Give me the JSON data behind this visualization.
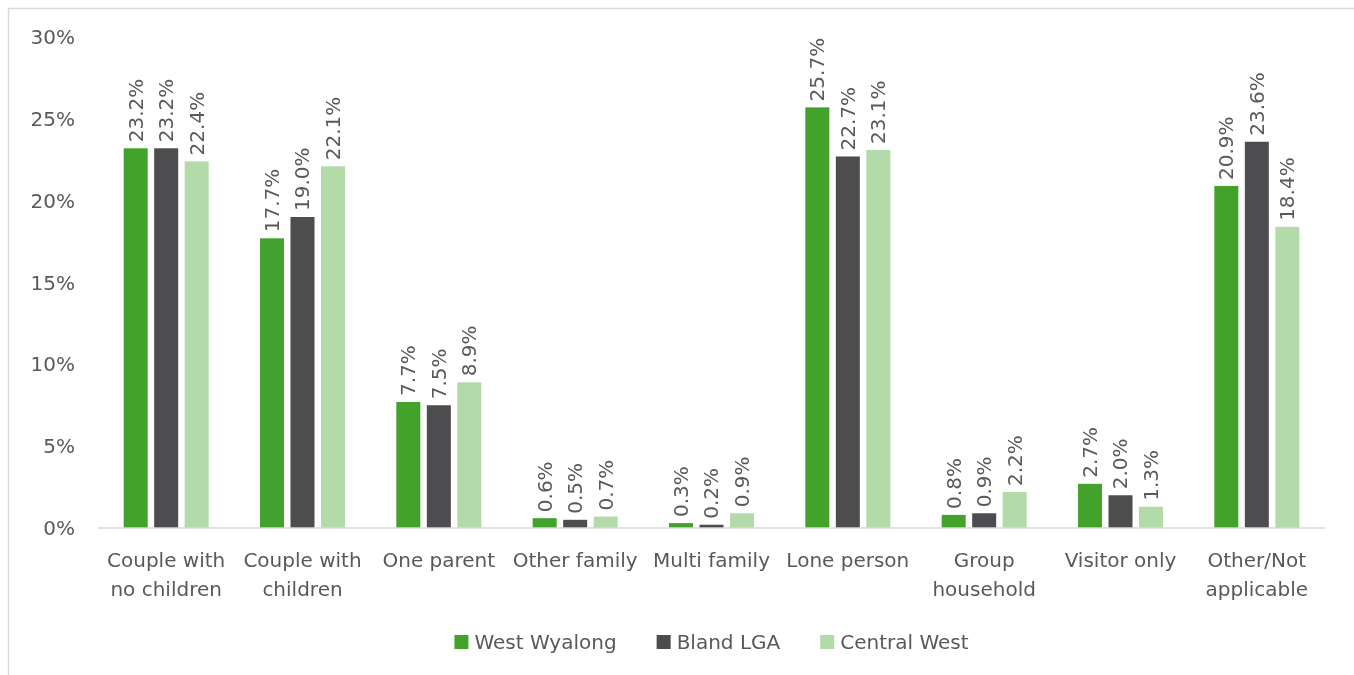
{
  "chart_data": {
    "type": "bar",
    "categories": [
      "Couple with no children",
      "Couple with children",
      "One parent",
      "Other family",
      "Multi family",
      "Lone person",
      "Group household",
      "Visitor only",
      "Other/Not applicable"
    ],
    "series": [
      {
        "name": "West Wyalong",
        "color": "#43a22c",
        "values": [
          23.2,
          17.7,
          7.7,
          0.6,
          0.3,
          25.7,
          0.8,
          2.7,
          20.9
        ],
        "value_labels": [
          "23.2%",
          "17.7%",
          "7.7%",
          "0.6%",
          "0.3%",
          "25.7%",
          "0.8%",
          "2.7%",
          "20.9%"
        ]
      },
      {
        "name": "Bland LGA",
        "color": "#4d4d4f",
        "values": [
          23.2,
          19.0,
          7.5,
          0.5,
          0.2,
          22.7,
          0.9,
          2.0,
          23.6
        ],
        "value_labels": [
          "23.2%",
          "19.0%",
          "7.5%",
          "0.5%",
          "0.2%",
          "22.7%",
          "0.9%",
          "2.0%",
          "23.6%"
        ]
      },
      {
        "name": "Central West",
        "color": "#b3dbaa",
        "values": [
          22.4,
          22.1,
          8.9,
          0.7,
          0.9,
          23.1,
          2.2,
          1.3,
          18.4
        ],
        "value_labels": [
          "22.4%",
          "22.1%",
          "8.9%",
          "0.7%",
          "0.9%",
          "23.1%",
          "2.2%",
          "1.3%",
          "18.4%"
        ]
      }
    ],
    "ylim": [
      0,
      30
    ],
    "yticks": [
      {
        "value": 0,
        "label": "0%"
      },
      {
        "value": 5,
        "label": "5%"
      },
      {
        "value": 10,
        "label": "10%"
      },
      {
        "value": 15,
        "label": "15%"
      },
      {
        "value": 20,
        "label": "20%"
      },
      {
        "value": 25,
        "label": "25%"
      },
      {
        "value": 30,
        "label": "30%"
      }
    ],
    "legend": "bottom"
  }
}
